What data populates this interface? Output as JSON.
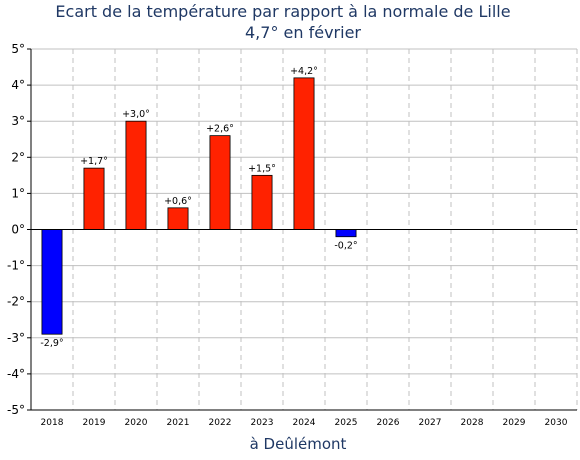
{
  "chart_data": {
    "type": "bar",
    "title": "Ecart de la température par rapport à la normale de Lille",
    "subtitle": "4,7° en février",
    "xlabel": "à Deûlémont",
    "ylabel": "",
    "ylim": [
      -5,
      5
    ],
    "yticks": [
      "5°",
      "4°",
      "3°",
      "2°",
      "1°",
      "0°",
      "-1°",
      "-2°",
      "-3°",
      "-4°",
      "-5°"
    ],
    "categories": [
      "2018",
      "2019",
      "2020",
      "2021",
      "2022",
      "2023",
      "2024",
      "2025",
      "2026",
      "2027",
      "2028",
      "2029",
      "2030"
    ],
    "values": [
      -2.9,
      1.7,
      3.0,
      0.6,
      2.6,
      1.5,
      4.2,
      -0.2,
      null,
      null,
      null,
      null,
      null
    ],
    "labels": [
      "-2,9°",
      "+1,7°",
      "+3,0°",
      "+0,6°",
      "+2,6°",
      "+1,5°",
      "+4,2°",
      "-0,2°",
      "",
      "",
      "",
      "",
      ""
    ],
    "colors": {
      "positive": "#ff2200",
      "negative": "#0000ff",
      "grid": "#c0c0c0",
      "title": "#1f3864"
    },
    "grid": true,
    "legend": "none"
  }
}
